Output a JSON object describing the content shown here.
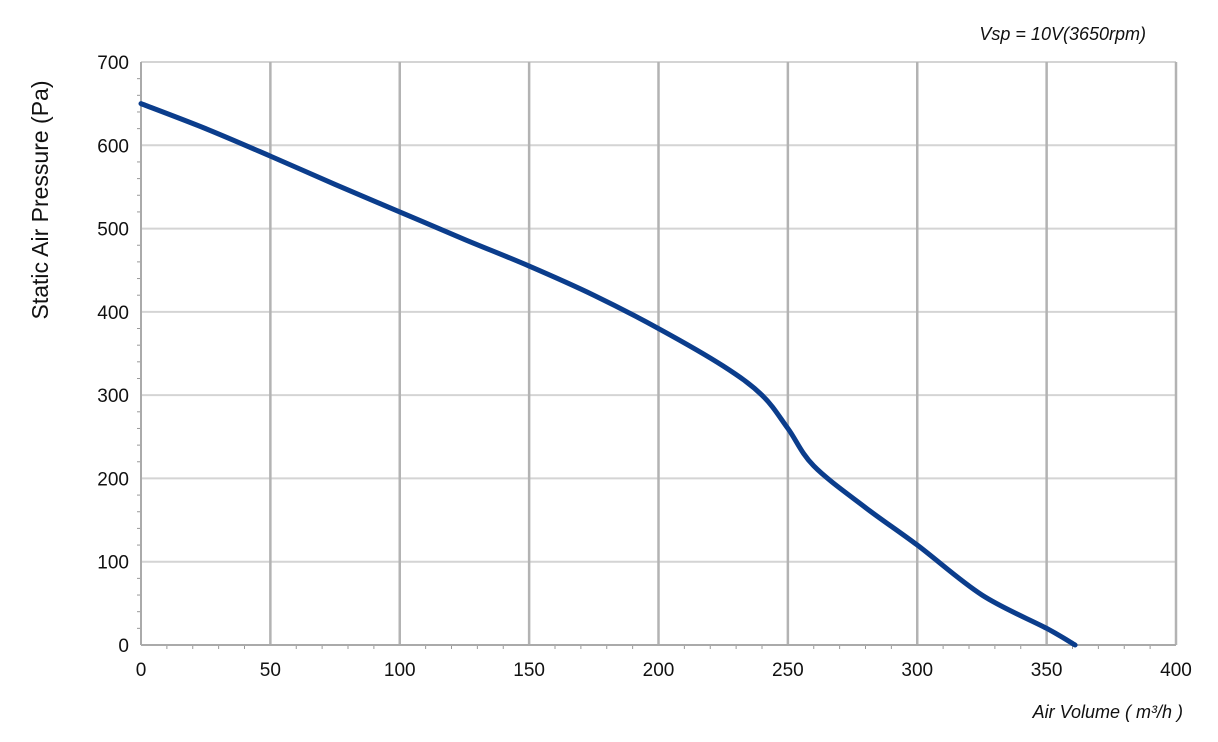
{
  "chart_data": {
    "type": "line",
    "title": "",
    "annotation": "Vsp = 10V(3650rpm)",
    "xlabel": "Air Volume ( m³/h )",
    "ylabel": "Static Air Pressure  (Pa)",
    "xlim": [
      0,
      400
    ],
    "ylim": [
      0,
      700
    ],
    "x_ticks": [
      0,
      50,
      100,
      150,
      200,
      250,
      300,
      350,
      400
    ],
    "y_ticks": [
      0,
      100,
      200,
      300,
      400,
      500,
      600,
      700
    ],
    "grid": true,
    "line_color": "#0b3d8c",
    "grid_color": "#b3b3b3",
    "series": [
      {
        "x": [
          0,
          25,
          50,
          75,
          100,
          125,
          150,
          175,
          200,
          225,
          240,
          250,
          260,
          280,
          300,
          325,
          350,
          361
        ],
        "y": [
          650,
          620,
          587,
          553,
          520,
          487,
          455,
          420,
          380,
          335,
          300,
          260,
          215,
          165,
          120,
          60,
          20,
          0
        ]
      }
    ]
  }
}
